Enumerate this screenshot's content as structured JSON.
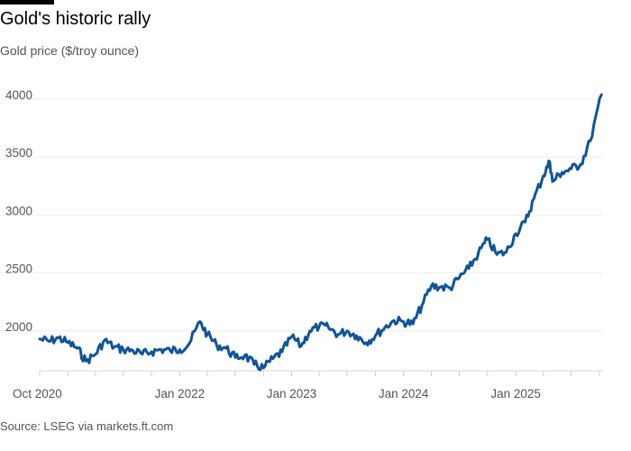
{
  "header": {
    "title": "Gold's historic rally",
    "subtitle": "Gold price ($/troy ounce)"
  },
  "footer": {
    "source": "Source: LSEG via markets.ft.com"
  },
  "chart_data": {
    "type": "line",
    "title": "Gold's historic rally",
    "subtitle": "Gold price ($/troy ounce)",
    "xlabel": "",
    "ylabel": "",
    "y_ticks": [
      2000,
      2500,
      3000,
      3500,
      4000
    ],
    "x_ticks": [
      "Oct 2020",
      "Jan 2022",
      "Jan 2023",
      "Jan 2024",
      "Jan 2025"
    ],
    "ylim": [
      1600,
      4000
    ],
    "xlim": [
      "2020-10-01",
      "2025-10-10"
    ],
    "grid": true,
    "line_color": "#0f5499",
    "series": [
      {
        "name": "",
        "x": [
          "2020-10-01",
          "2020-11-01",
          "2020-12-01",
          "2021-01-01",
          "2021-02-01",
          "2021-03-01",
          "2021-04-01",
          "2021-05-01",
          "2021-06-01",
          "2021-07-01",
          "2021-08-01",
          "2021-09-01",
          "2021-10-01",
          "2021-11-01",
          "2021-12-01",
          "2022-01-01",
          "2022-02-01",
          "2022-03-08",
          "2022-04-01",
          "2022-05-01",
          "2022-06-01",
          "2022-07-01",
          "2022-08-01",
          "2022-09-01",
          "2022-10-01",
          "2022-11-01",
          "2022-12-01",
          "2023-01-01",
          "2023-02-01",
          "2023-03-01",
          "2023-04-01",
          "2023-05-01",
          "2023-06-01",
          "2023-07-01",
          "2023-08-01",
          "2023-09-01",
          "2023-10-01",
          "2023-11-01",
          "2023-12-01",
          "2024-01-01",
          "2024-02-01",
          "2024-03-01",
          "2024-04-01",
          "2024-05-01",
          "2024-06-01",
          "2024-07-01",
          "2024-08-01",
          "2024-09-01",
          "2024-10-01",
          "2024-11-01",
          "2024-12-01",
          "2025-01-01",
          "2025-02-01",
          "2025-03-01",
          "2025-04-01",
          "2025-04-22",
          "2025-05-01",
          "2025-06-01",
          "2025-07-01",
          "2025-08-01",
          "2025-09-01",
          "2025-10-08"
        ],
        "values": [
          1890,
          1870,
          1900,
          1860,
          1810,
          1700,
          1760,
          1880,
          1820,
          1800,
          1790,
          1760,
          1780,
          1800,
          1790,
          1800,
          1850,
          2040,
          1930,
          1840,
          1810,
          1730,
          1750,
          1670,
          1640,
          1720,
          1780,
          1910,
          1830,
          1960,
          2000,
          1990,
          1930,
          1960,
          1920,
          1860,
          1920,
          1990,
          2050,
          2040,
          2020,
          2180,
          2350,
          2340,
          2330,
          2420,
          2500,
          2630,
          2750,
          2620,
          2640,
          2800,
          2900,
          3100,
          3300,
          3420,
          3250,
          3330,
          3360,
          3400,
          3600,
          4000
        ]
      }
    ]
  }
}
